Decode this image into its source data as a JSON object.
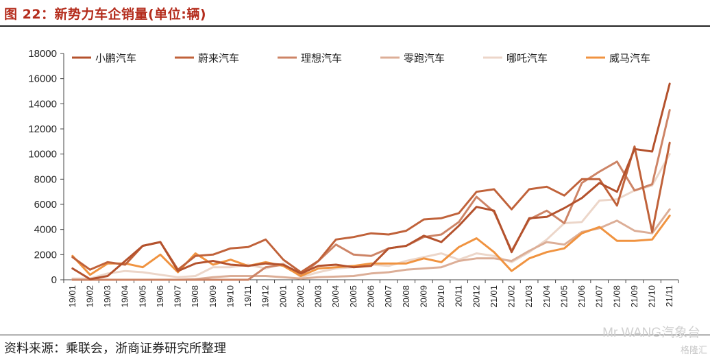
{
  "header": {
    "figure_title": "图 22：新势力车企销量(单位:辆)"
  },
  "footer": {
    "source": "资料来源：乘联会，浙商证券研究所整理",
    "watermark": "Mr WANG汽象台",
    "badge": "格隆汇"
  },
  "chart_data": {
    "type": "line",
    "categories": [
      "19/01",
      "19/02",
      "19/03",
      "19/04",
      "19/05",
      "19/06",
      "19/07",
      "19/08",
      "19/09",
      "19/10",
      "19/11",
      "19/12",
      "20/01",
      "20/02",
      "20/03",
      "20/04",
      "20/05",
      "20/06",
      "20/07",
      "20/08",
      "20/09",
      "20/10",
      "20/11",
      "20/12",
      "21/01",
      "21/02",
      "21/03",
      "21/04",
      "21/05",
      "21/06",
      "21/07",
      "21/08",
      "21/09",
      "21/10",
      "21/11"
    ],
    "ylim": [
      0,
      18000
    ],
    "yticks": [
      0,
      2000,
      4000,
      6000,
      8000,
      10000,
      12000,
      14000,
      16000,
      18000
    ],
    "grid": false,
    "legend_position": "top",
    "series": [
      {
        "name": "小鹏汽车",
        "color": "#b4522d",
        "width": 3,
        "values": [
          900,
          50,
          300,
          1500,
          2700,
          3000,
          700,
          1300,
          1500,
          1200,
          1100,
          1300,
          1200,
          500,
          1100,
          1200,
          1000,
          1100,
          2500,
          2700,
          3500,
          3000,
          4300,
          5800,
          5500,
          2200,
          4900,
          5000,
          5700,
          6500,
          7700,
          7000,
          10400,
          10200,
          15600
        ]
      },
      {
        "name": "蔚来汽车",
        "color": "#c0623a",
        "width": 3,
        "values": [
          1800,
          800,
          1400,
          1200,
          2700,
          3000,
          800,
          1900,
          2000,
          2500,
          2600,
          3200,
          1600,
          600,
          1500,
          3200,
          3400,
          3700,
          3600,
          3900,
          4800,
          4900,
          5300,
          7000,
          7200,
          5600,
          7200,
          7400,
          6700,
          8000,
          8000,
          5900,
          10600,
          3800,
          10900
        ]
      },
      {
        "name": "理想汽车",
        "color": "#cd8466",
        "width": 3,
        "values": [
          0,
          0,
          0,
          0,
          0,
          0,
          0,
          0,
          0,
          0,
          0,
          1000,
          1200,
          300,
          1500,
          2800,
          2000,
          1900,
          2500,
          2700,
          3400,
          3600,
          4600,
          6600,
          5400,
          2300,
          4800,
          5500,
          4500,
          7700,
          8600,
          9400,
          7100,
          7600,
          13500
        ]
      },
      {
        "name": "零跑汽车",
        "color": "#dcae97",
        "width": 3,
        "values": [
          0,
          0,
          0,
          0,
          0,
          0,
          0,
          50,
          200,
          300,
          300,
          300,
          200,
          100,
          200,
          250,
          300,
          500,
          600,
          800,
          900,
          1000,
          1500,
          1700,
          1700,
          1500,
          2300,
          3000,
          2800,
          3800,
          4100,
          4700,
          3900,
          3700,
          5600
        ]
      },
      {
        "name": "哪吒汽车",
        "color": "#ecd6c9",
        "width": 3,
        "values": [
          100,
          100,
          500,
          700,
          600,
          400,
          200,
          300,
          1000,
          1000,
          1200,
          900,
          1300,
          200,
          600,
          900,
          1000,
          1200,
          1100,
          1500,
          1800,
          2100,
          1600,
          2100,
          1900,
          1400,
          2200,
          3200,
          4500,
          4600,
          6300,
          6400,
          7100,
          7500,
          10000
        ]
      },
      {
        "name": "威马汽车",
        "color": "#f09340",
        "width": 3,
        "values": [
          1900,
          400,
          1300,
          1300,
          1000,
          2000,
          600,
          2100,
          1200,
          1600,
          1100,
          1400,
          1100,
          300,
          900,
          1000,
          1100,
          1300,
          1300,
          1300,
          1700,
          1400,
          2600,
          3300,
          2200,
          700,
          1700,
          2200,
          2500,
          3700,
          4200,
          3100,
          3100,
          3200,
          5100
        ]
      }
    ]
  }
}
